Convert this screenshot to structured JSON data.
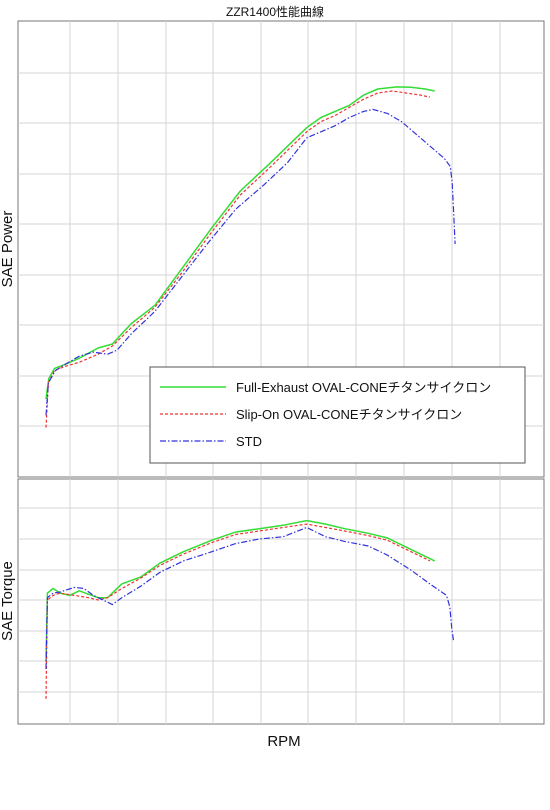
{
  "chart_data": {
    "type": "line",
    "title": "ZZR1400性能曲線",
    "xlabel": "RPM",
    "x_tick_labels_shown": false,
    "y_tick_labels_shown": false,
    "grid": true,
    "legend_placement": "bottom-right of upper panel",
    "xlim": [
      0,
      100
    ],
    "panels": [
      {
        "name": "power",
        "ylabel": "SAE Power",
        "ylim": [
          0,
          100
        ],
        "series": [
          {
            "name": "Full-Exhaust OVAL-CONEチタンサイクロン",
            "color": "#33dd33",
            "dash": "solid",
            "points": [
              [
                0,
                12
              ],
              [
                0.6,
                17
              ],
              [
                1.8,
                19.5
              ],
              [
                4,
                20.5
              ],
              [
                7,
                22
              ],
              [
                11,
                24.5
              ],
              [
                14,
                25.5
              ],
              [
                18,
                30.5
              ],
              [
                23,
                35
              ],
              [
                29,
                44.5
              ],
              [
                35,
                54
              ],
              [
                41,
                63
              ],
              [
                47,
                69.5
              ],
              [
                51,
                74
              ],
              [
                55,
                78.5
              ],
              [
                58,
                81
              ],
              [
                61,
                82.5
              ],
              [
                64,
                84
              ],
              [
                67,
                86.5
              ],
              [
                70,
                88
              ],
              [
                74,
                88.5
              ],
              [
                77,
                88.4
              ],
              [
                80,
                88
              ],
              [
                82,
                87.5
              ]
            ]
          },
          {
            "name": "Slip-On OVAL-CONEチタンサイクロン",
            "color": "#ee3333",
            "dash": "3,2",
            "points": [
              [
                0,
                5
              ],
              [
                0.5,
                16
              ],
              [
                1.8,
                19
              ],
              [
                4,
                20
              ],
              [
                7,
                21
              ],
              [
                11,
                23
              ],
              [
                14,
                25
              ],
              [
                18,
                29.5
              ],
              [
                23,
                34.5
              ],
              [
                29,
                43.5
              ],
              [
                35,
                53
              ],
              [
                41,
                62
              ],
              [
                47,
                68.5
              ],
              [
                51,
                73
              ],
              [
                55,
                77.5
              ],
              [
                58,
                80
              ],
              [
                61,
                81.5
              ],
              [
                64,
                83.5
              ],
              [
                67,
                85.5
              ],
              [
                70,
                87
              ],
              [
                73,
                87.5
              ],
              [
                76,
                87
              ],
              [
                79,
                86.5
              ],
              [
                81,
                86
              ]
            ]
          },
          {
            "name": "STD",
            "color": "#3333dd",
            "dash": "6,2,1.5,2",
            "points": [
              [
                0,
                8
              ],
              [
                0.5,
                16
              ],
              [
                2,
                19
              ],
              [
                4,
                20.5
              ],
              [
                7,
                22.5
              ],
              [
                10,
                23.5
              ],
              [
                13,
                23
              ],
              [
                15,
                24
              ],
              [
                18,
                28
              ],
              [
                23,
                33.5
              ],
              [
                28,
                41
              ],
              [
                34,
                50
              ],
              [
                40,
                58.5
              ],
              [
                46,
                64.5
              ],
              [
                51,
                70
              ],
              [
                55,
                76
              ],
              [
                58,
                77.5
              ],
              [
                61,
                79
              ],
              [
                64,
                81
              ],
              [
                67,
                82.5
              ],
              [
                69,
                83
              ],
              [
                72,
                82
              ],
              [
                75,
                80
              ],
              [
                78,
                77
              ],
              [
                81,
                74
              ],
              [
                84,
                71
              ],
              [
                85.3,
                69
              ],
              [
                85.7,
                65
              ],
              [
                86,
                58
              ],
              [
                86.3,
                50
              ]
            ]
          }
        ]
      },
      {
        "name": "torque",
        "ylabel": "SAE Torque",
        "ylim": [
          0,
          100
        ],
        "series": [
          {
            "name": "Full-Exhaust OVAL-CONEチタンサイクロン",
            "color": "#33dd33",
            "dash": "solid",
            "points": [
              [
                0,
                23
              ],
              [
                0.3,
                53
              ],
              [
                1.5,
                55
              ],
              [
                3,
                53
              ],
              [
                5,
                52
              ],
              [
                7,
                54
              ],
              [
                9,
                52.5
              ],
              [
                11,
                51
              ],
              [
                13,
                51
              ],
              [
                16,
                57
              ],
              [
                20,
                60
              ],
              [
                24,
                66
              ],
              [
                29,
                71
              ],
              [
                35,
                76
              ],
              [
                40,
                79.5
              ],
              [
                45,
                81
              ],
              [
                50,
                82.5
              ],
              [
                55,
                84.5
              ],
              [
                59,
                83
              ],
              [
                63,
                81
              ],
              [
                68,
                79
              ],
              [
                72,
                77
              ],
              [
                77,
                72
              ],
              [
                82,
                67
              ]
            ]
          },
          {
            "name": "Slip-On OVAL-CONEチタンサイクロン",
            "color": "#ee3333",
            "dash": "3,2",
            "points": [
              [
                0,
                7
              ],
              [
                0.3,
                50
              ],
              [
                1.5,
                52
              ],
              [
                3,
                53
              ],
              [
                6,
                52
              ],
              [
                9,
                51
              ],
              [
                11,
                50
              ],
              [
                13,
                51
              ],
              [
                16,
                55
              ],
              [
                20,
                59.5
              ],
              [
                24,
                65
              ],
              [
                29,
                70
              ],
              [
                35,
                75
              ],
              [
                40,
                78.5
              ],
              [
                45,
                80
              ],
              [
                50,
                81.5
              ],
              [
                55,
                83
              ],
              [
                59,
                81.5
              ],
              [
                63,
                80
              ],
              [
                68,
                78
              ],
              [
                72,
                76
              ],
              [
                77,
                71
              ],
              [
                81,
                67
              ]
            ]
          },
          {
            "name": "STD",
            "color": "#3333dd",
            "dash": "6,2,1.5,2",
            "points": [
              [
                0,
                20
              ],
              [
                0.3,
                51
              ],
              [
                1.5,
                53
              ],
              [
                3,
                53.5
              ],
              [
                6,
                55.5
              ],
              [
                8,
                55
              ],
              [
                10,
                52
              ],
              [
                12,
                50
              ],
              [
                14,
                48
              ],
              [
                16,
                51
              ],
              [
                20,
                56
              ],
              [
                24,
                62
              ],
              [
                29,
                67
              ],
              [
                35,
                71
              ],
              [
                40,
                74.5
              ],
              [
                45,
                76.5
              ],
              [
                50,
                77.5
              ],
              [
                55,
                81.5
              ],
              [
                59,
                77.5
              ],
              [
                63,
                75.5
              ],
              [
                68,
                73.5
              ],
              [
                72,
                69.5
              ],
              [
                77,
                63
              ],
              [
                81,
                57
              ],
              [
                84.5,
                52
              ],
              [
                85.2,
                47
              ],
              [
                85.6,
                38
              ],
              [
                86,
                32
              ]
            ]
          }
        ]
      }
    ],
    "legend": [
      {
        "label": "Full-Exhaust OVAL-CONEチタンサイクロン",
        "color": "#33dd33",
        "dash": "solid"
      },
      {
        "label": "Slip-On OVAL-CONEチタンサイクロン",
        "color": "#ee3333",
        "dash": "3,2"
      },
      {
        "label": "STD",
        "color": "#3333dd",
        "dash": "6,2,1.5,2"
      }
    ]
  }
}
